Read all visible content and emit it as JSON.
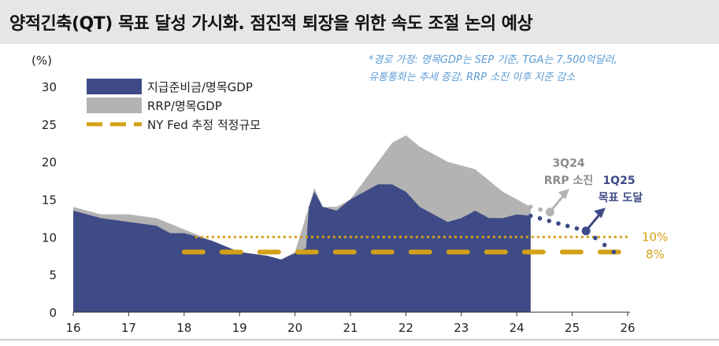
{
  "title": "양적긴축(QT) 목표 달성 가시화. 점진적 퇴장을 위한 속도 조절 논의 예상",
  "note": [
    "*경로 가정: 명목GDP는 SEP 기준, TGA는 7,500억달러,",
    "유통통화는 추세 증감, RRP 소진 이후 지준 감소"
  ],
  "chart_data": {
    "type": "area",
    "ylabel": "(%)",
    "ylim": [
      0,
      30
    ],
    "yticks": [
      0,
      5,
      10,
      15,
      20,
      25,
      30
    ],
    "xlim": [
      16,
      26
    ],
    "xticks": [
      "16",
      "17",
      "18",
      "19",
      "20",
      "21",
      "22",
      "23",
      "24",
      "25",
      "26"
    ],
    "legend_position": "top-left",
    "series": [
      {
        "name": "지급준비금/명목GDP",
        "color": "#3f4b86",
        "x": [
          16.0,
          16.5,
          17.0,
          17.5,
          17.75,
          18.0,
          18.5,
          19.0,
          19.5,
          19.75,
          19.9,
          20.2,
          20.25,
          20.35,
          20.5,
          20.75,
          21.0,
          21.25,
          21.5,
          21.75,
          22.0,
          22.25,
          22.5,
          22.75,
          23.0,
          23.25,
          23.5,
          23.75,
          24.0,
          24.25
        ],
        "y": [
          13.5,
          12.5,
          12.0,
          11.5,
          10.5,
          10.5,
          9.5,
          8.0,
          7.5,
          7.0,
          7.5,
          8.5,
          14.0,
          16.0,
          14.0,
          13.5,
          15.0,
          16.0,
          17.0,
          17.0,
          16.0,
          14.0,
          13.0,
          12.0,
          12.5,
          13.5,
          12.5,
          12.5,
          13.0,
          12.8
        ]
      },
      {
        "name": "RRP/명목GDP",
        "color": "#b3b3b3",
        "x": [
          16.0,
          16.5,
          17.0,
          17.5,
          18.0,
          18.5,
          19.0,
          19.5,
          19.75,
          20.0,
          20.25,
          20.35,
          20.5,
          20.75,
          21.0,
          21.25,
          21.5,
          21.75,
          22.0,
          22.25,
          22.5,
          22.75,
          23.0,
          23.25,
          23.5,
          23.75,
          24.0,
          24.25
        ],
        "y_total": [
          14.0,
          13.0,
          13.0,
          12.5,
          11.0,
          9.5,
          8.0,
          7.5,
          7.0,
          8.0,
          14.0,
          16.5,
          14.0,
          14.0,
          15.0,
          17.5,
          20.0,
          22.5,
          23.5,
          22.0,
          21.0,
          20.0,
          19.5,
          19.0,
          17.5,
          16.0,
          15.0,
          14.0
        ]
      },
      {
        "name": "NY Fed 추정 적정규모",
        "color": "#d4a017",
        "style": "dashed",
        "x": [
          18,
          26
        ],
        "y": [
          8,
          8
        ],
        "label": "8%"
      },
      {
        "name": "",
        "color": "#d4a017",
        "style": "dotted",
        "x": [
          18.2,
          26
        ],
        "y": [
          10,
          10
        ],
        "label": "10%"
      }
    ],
    "projections": [
      {
        "color": "#b3b3b3",
        "x": [
          24.25,
          24.6
        ],
        "y": [
          14.0,
          13.3
        ],
        "annotation": [
          "3Q24",
          "RRP 소진"
        ]
      },
      {
        "color": "#3f4b86",
        "x": [
          24.25,
          25.25,
          25.75
        ],
        "y": [
          12.8,
          10.8,
          8.0
        ],
        "annotation": [
          "1Q25",
          "목표 도달"
        ]
      }
    ]
  }
}
